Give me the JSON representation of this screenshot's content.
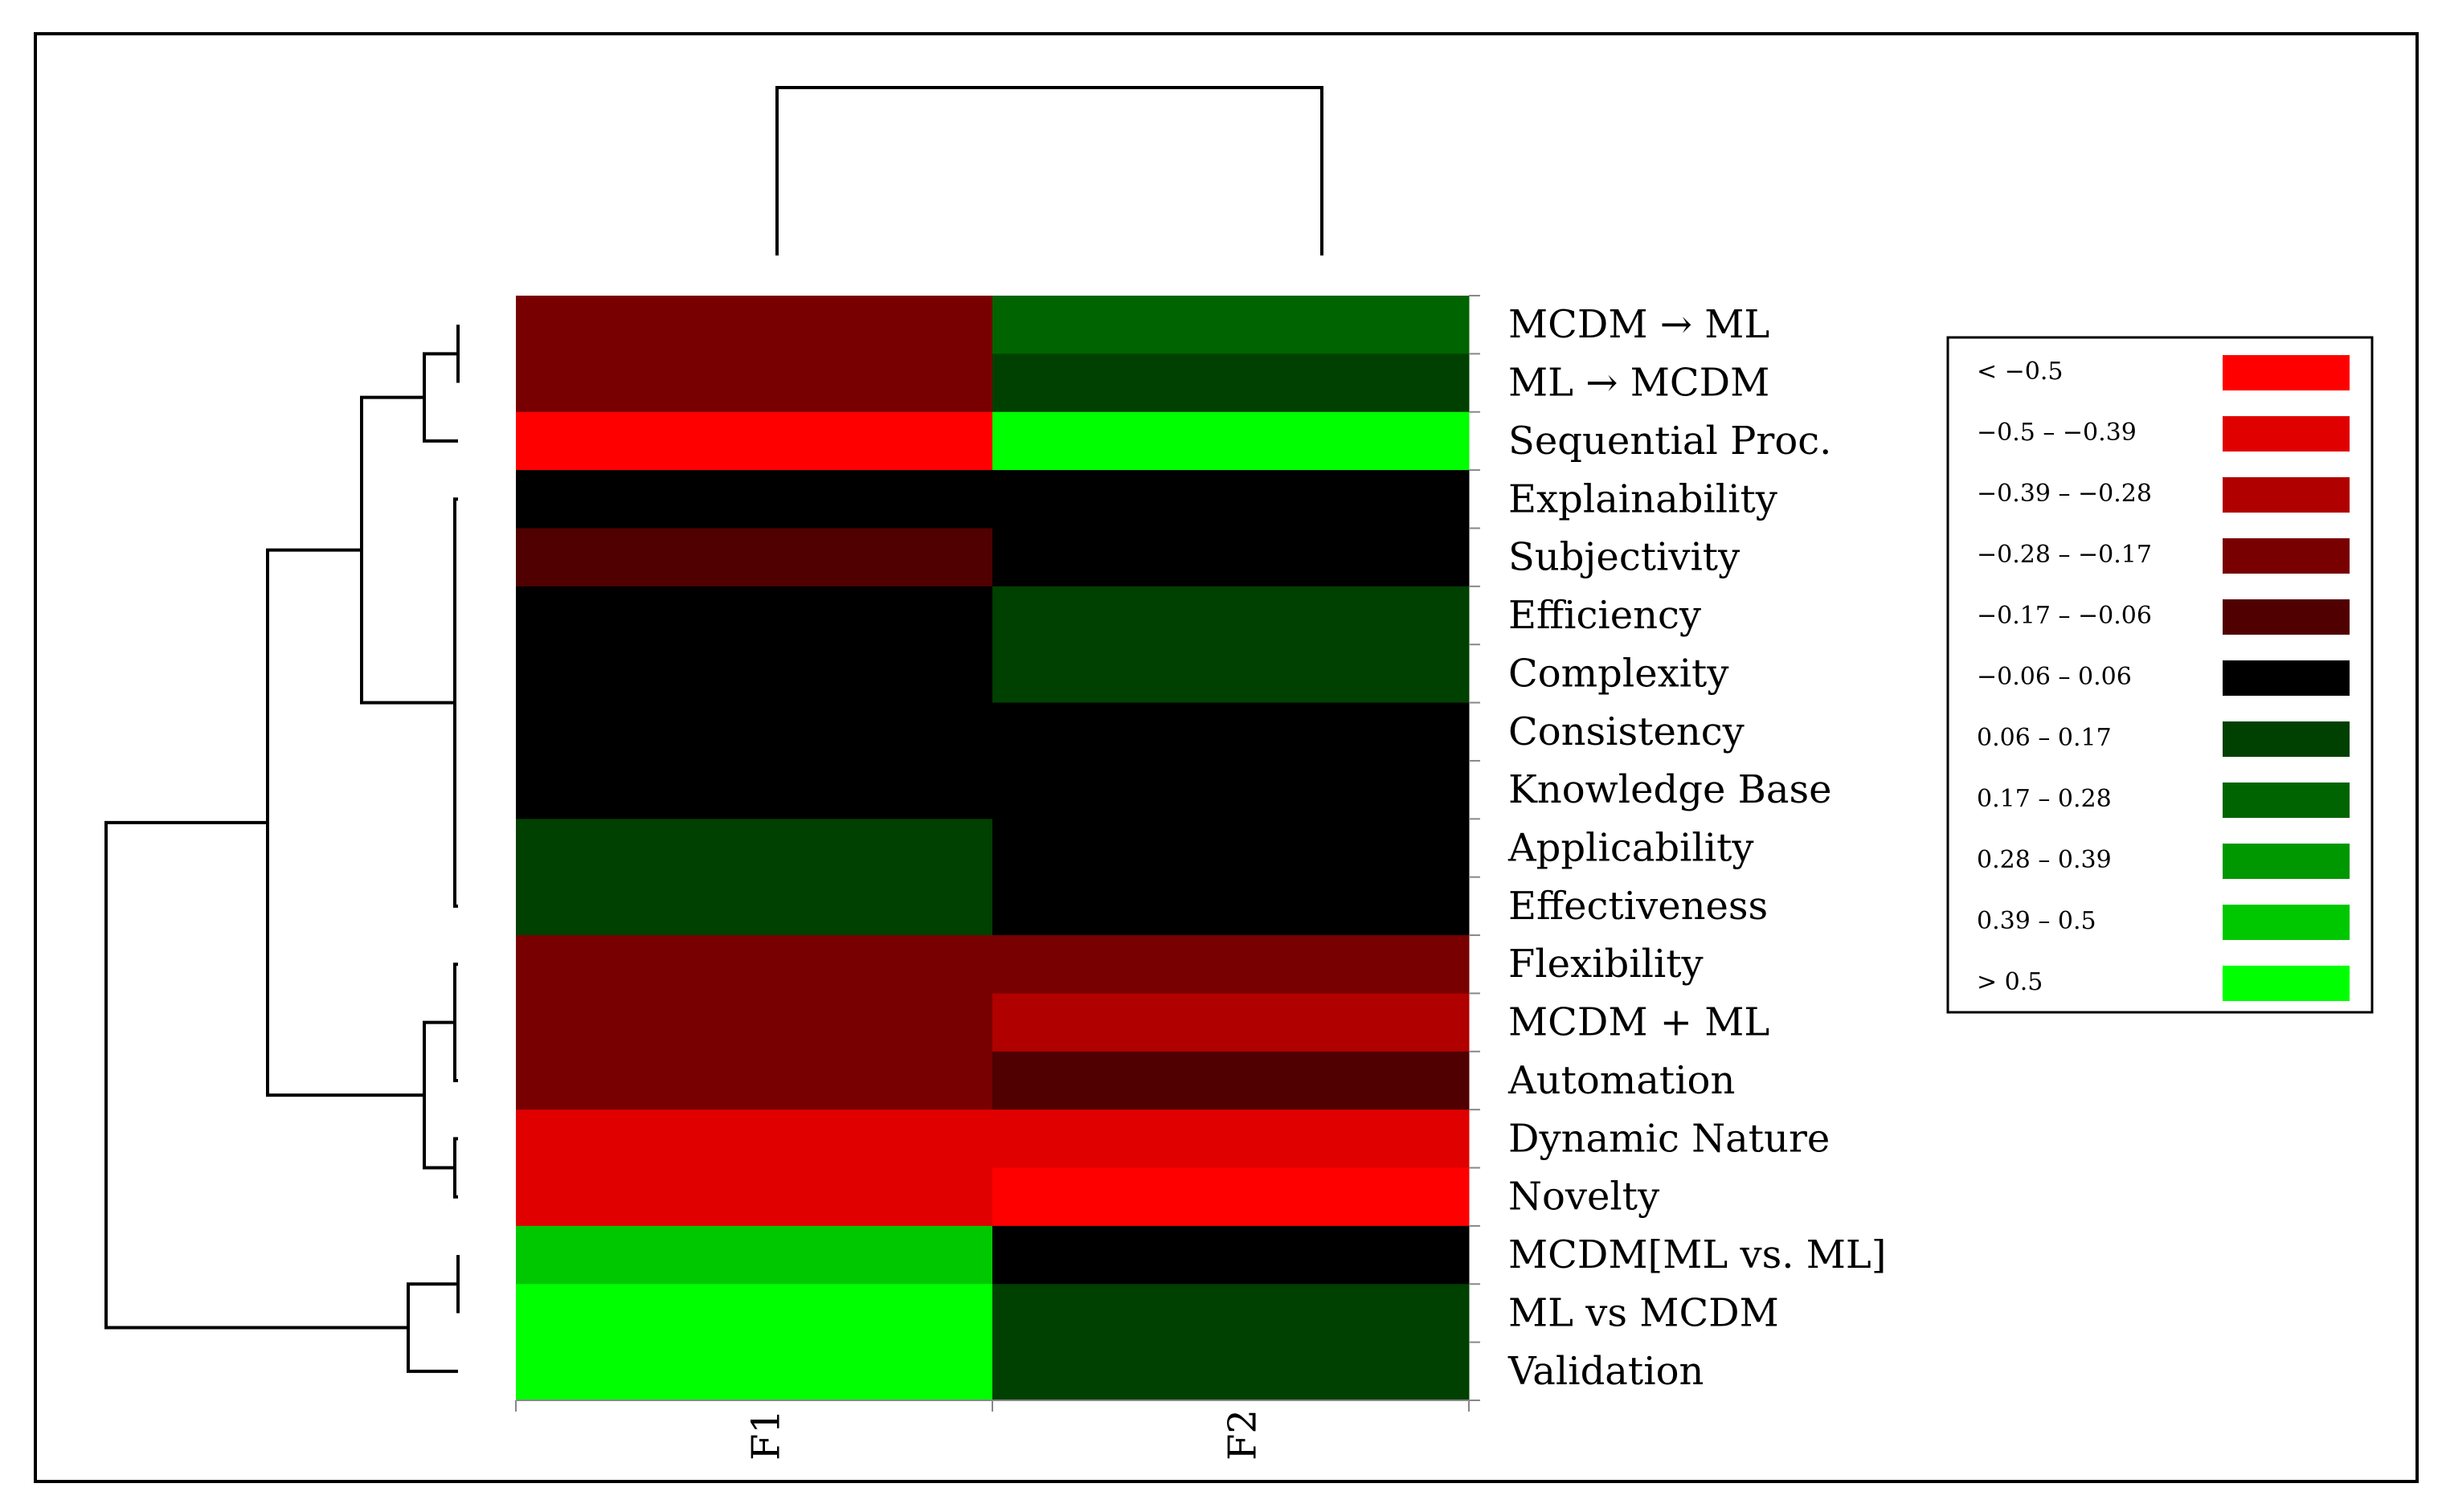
{
  "chart_data": {
    "type": "heatmap",
    "title": "",
    "columns": [
      "F1",
      "F2"
    ],
    "rows": [
      "MCDM → ML",
      "ML → MCDM",
      "Sequential Proc.",
      "Explainability",
      "Subjectivity",
      "Efficiency",
      "Complexity",
      "Consistency",
      "Knowledge Base",
      "Applicability",
      "Effectiveness",
      "Flexibility",
      "MCDM + ML",
      "Automation",
      "Dynamic Nature",
      "Novelty",
      "MCDM[ML vs. ML]",
      "ML vs MCDM",
      "Validation"
    ],
    "values": [
      [
        -0.22,
        0.22
      ],
      [
        -0.22,
        0.11
      ],
      [
        -0.6,
        0.6
      ],
      [
        0.0,
        0.0
      ],
      [
        -0.11,
        0.0
      ],
      [
        0.0,
        0.11
      ],
      [
        0.0,
        0.11
      ],
      [
        0.0,
        0.0
      ],
      [
        0.0,
        0.0
      ],
      [
        0.11,
        0.0
      ],
      [
        0.11,
        0.0
      ],
      [
        -0.22,
        -0.22
      ],
      [
        -0.22,
        -0.33
      ],
      [
        -0.22,
        -0.11
      ],
      [
        -0.45,
        -0.45
      ],
      [
        -0.45,
        -0.6
      ],
      [
        0.45,
        0.0
      ],
      [
        0.6,
        0.11
      ],
      [
        0.6,
        0.11
      ]
    ],
    "legend": {
      "placement": "right",
      "bins": [
        {
          "label": "< −0.5",
          "color": "#ff0000"
        },
        {
          "label": "−0.5 – −0.39",
          "color": "#e10000"
        },
        {
          "label": "−0.39 – −0.28",
          "color": "#b00000"
        },
        {
          "label": "−0.28 – −0.17",
          "color": "#780000"
        },
        {
          "label": "−0.17 – −0.06",
          "color": "#500000"
        },
        {
          "label": "−0.06 – 0.06",
          "color": "#000000"
        },
        {
          "label": "0.06 – 0.17",
          "color": "#004000"
        },
        {
          "label": "0.17 – 0.28",
          "color": "#006400"
        },
        {
          "label": "0.28 – 0.39",
          "color": "#009800"
        },
        {
          "label": "0.39 – 0.5",
          "color": "#00c800"
        },
        {
          "label": "> 0.5",
          "color": "#00ff00"
        }
      ]
    }
  }
}
